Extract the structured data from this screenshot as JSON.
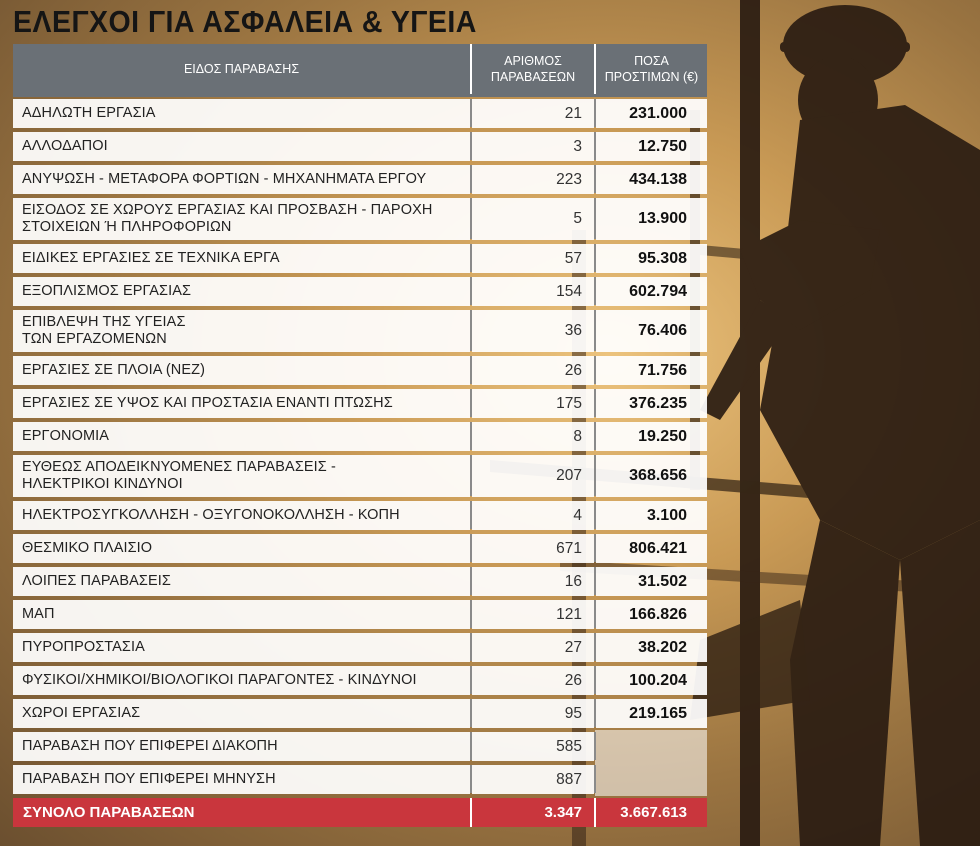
{
  "title": "ΕΛΕΓΧΟΙ ΓΙΑ ΑΣΦΑΛΕΙΑ & ΥΓΕΙΑ",
  "table": {
    "headers": {
      "type": "ΕΙΔΟΣ ΠΑΡΑΒΑΣΗΣ",
      "count_line1": "ΑΡΙΘΜΟΣ",
      "count_line2": "ΠΑΡΑΒΑΣΕΩΝ",
      "fines_line1": "ΠΟΣΑ",
      "fines_line2": "ΠΡΟΣΤΙΜΩΝ (€)"
    },
    "rows": [
      {
        "name": "ΑΔΗΛΩΤΗ ΕΡΓΑΣΙΑ",
        "name2": "",
        "count": "21",
        "fines": "231.000"
      },
      {
        "name": "ΑΛΛΟΔΑΠΟΙ",
        "name2": "",
        "count": "3",
        "fines": "12.750"
      },
      {
        "name": "ΑΝΥΨΩΣΗ - ΜΕΤΑΦΟΡΑ ΦΟΡΤΙΩΝ - ΜΗΧΑΝΗΜΑΤΑ ΕΡΓΟΥ",
        "name2": "",
        "count": "223",
        "fines": "434.138"
      },
      {
        "name": "ΕΙΣΟΔΟΣ ΣΕ ΧΩΡΟΥΣ ΕΡΓΑΣΙΑΣ ΚΑΙ ΠΡΟΣΒΑΣΗ - ΠΑΡΟΧΗ",
        "name2": "ΣΤΟΙΧΕΙΩΝ Ή ΠΛΗΡΟΦΟΡΙΩΝ",
        "count": "5",
        "fines": "13.900"
      },
      {
        "name": "ΕΙΔΙΚΕΣ ΕΡΓΑΣΙΕΣ ΣΕ ΤΕΧΝΙΚΑ ΕΡΓΑ",
        "name2": "",
        "count": "57",
        "fines": "95.308"
      },
      {
        "name": "ΕΞΟΠΛΙΣΜΟΣ ΕΡΓΑΣΙΑΣ",
        "name2": "",
        "count": "154",
        "fines": "602.794"
      },
      {
        "name": "ΕΠΙΒΛΕΨΗ ΤΗΣ ΥΓΕΙΑΣ",
        "name2": "ΤΩΝ ΕΡΓΑΖΟΜΕΝΩΝ",
        "count": "36",
        "fines": "76.406"
      },
      {
        "name": "ΕΡΓΑΣΙΕΣ ΣΕ ΠΛΟΙΑ (ΝΕΖ)",
        "name2": "",
        "count": "26",
        "fines": "71.756"
      },
      {
        "name": "ΕΡΓΑΣΙΕΣ ΣΕ ΥΨΟΣ ΚΑΙ ΠΡΟΣΤΑΣΙΑ ΕΝΑΝΤΙ ΠΤΩΣΗΣ",
        "name2": "",
        "count": "175",
        "fines": "376.235"
      },
      {
        "name": "ΕΡΓΟΝΟΜΙΑ",
        "name2": "",
        "count": "8",
        "fines": "19.250"
      },
      {
        "name": "ΕΥΘΕΩΣ ΑΠΟΔΕΙΚΝΥΟΜΕΝΕΣ ΠΑΡΑΒΑΣΕΙΣ -",
        "name2": "ΗΛΕΚΤΡΙΚΟΙ ΚΙΝΔΥΝΟΙ",
        "count": "207",
        "fines": "368.656"
      },
      {
        "name": "ΗΛΕΚΤΡΟΣΥΓΚΟΛΛΗΣΗ - ΟΞΥΓΟΝΟΚΟΛΛΗΣΗ - ΚΟΠΗ",
        "name2": "",
        "count": "4",
        "fines": "3.100"
      },
      {
        "name": "ΘΕΣΜΙΚΟ ΠΛΑΙΣΙΟ",
        "name2": "",
        "count": "671",
        "fines": "806.421"
      },
      {
        "name": "ΛΟΙΠΕΣ ΠΑΡΑΒΑΣΕΙΣ",
        "name2": "",
        "count": "16",
        "fines": "31.502"
      },
      {
        "name": "ΜΑΠ",
        "name2": "",
        "count": "121",
        "fines": "166.826"
      },
      {
        "name": "ΠΥΡΟΠΡΟΣΤΑΣΙΑ",
        "name2": "",
        "count": "27",
        "fines": "38.202"
      },
      {
        "name": "ΦΥΣΙΚΟΙ/ΧΗΜΙΚΟΙ/ΒΙΟΛΟΓΙΚΟΙ ΠΑΡΑΓΟΝΤΕΣ - ΚΙΝΔΥΝΟΙ",
        "name2": "",
        "count": "26",
        "fines": "100.204"
      },
      {
        "name": "ΧΩΡΟΙ ΕΡΓΑΣΙΑΣ",
        "name2": "",
        "count": "95",
        "fines": "219.165"
      },
      {
        "name": "ΠΑΡΑΒΑΣΗ ΠΟΥ ΕΠΙΦΕΡΕΙ ΔΙΑΚΟΠΗ",
        "name2": "",
        "count": "585",
        "fines": ""
      },
      {
        "name": "ΠΑΡΑΒΑΣΗ ΠΟΥ ΕΠΙΦΕΡΕΙ ΜΗΝΥΣΗ",
        "name2": "",
        "count": "887",
        "fines": ""
      }
    ],
    "total": {
      "label": "ΣΥΝΟΛΟ ΠΑΡΑΒΑΣΕΩΝ",
      "count": "3.347",
      "fines": "3.667.613"
    }
  },
  "colors": {
    "header_bg": "#6a7076",
    "total_bg": "#c9363d",
    "background": "#c99a55",
    "silhouette": "#2a1c12"
  },
  "icons": {
    "background_art": "construction-worker-scaffold-silhouette"
  }
}
